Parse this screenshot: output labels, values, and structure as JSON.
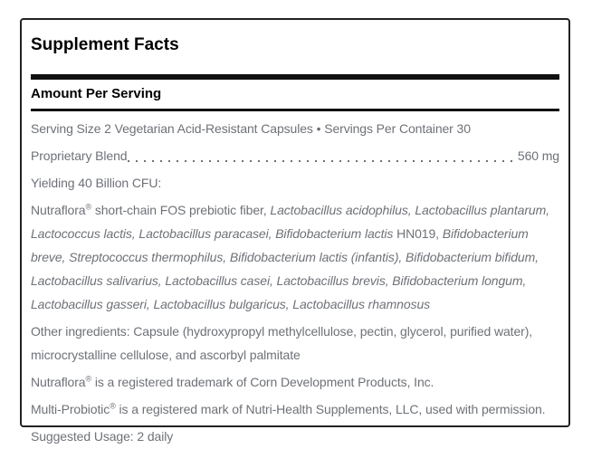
{
  "colors": {
    "text": "#6e7177",
    "heading": "#000000",
    "divider": "#111111",
    "panel_border": "#222222",
    "background": "#ffffff"
  },
  "panel": {
    "title": "Supplement Facts",
    "subheader": "Amount Per Serving",
    "serving_line": "Serving Size 2 Vegetarian Acid-Resistant Capsules • Servings Per Container 30",
    "proprietary": {
      "label": "Proprietary Blend",
      "value": "560 mg"
    },
    "yielding": "Yielding 40 Billion CFU:",
    "blend": {
      "brand": "Nutraflora",
      "trademark_symbol": "®",
      "regular_1": " short-chain FOS prebiotic fiber, ",
      "italic_1": "Lactobacillus acidophilus, Lactobacillus plantarum, Lactococcus lactis, Lactobacillus paracasei, Bifidobacterium lactis",
      "regular_2": " HN019, ",
      "italic_2": "Bifidobacterium breve, Streptococcus thermophilus, Bifidobacterium lactis (infantis), Bifidobacterium bifidum, Lactobacillus salivarius, Lactobacillus casei, Lactobacillus brevis, Bifidobacterium longum, Lactobacillus gasseri, Lactobacillus bulgaricus, Lactobacillus rhamnosus"
    },
    "other_ingredients": "Other ingredients: Capsule (hydroxypropyl methylcellulose, pectin, glycerol, purified water), microcrystalline cellulose, and ascorbyl palmitate",
    "nutraflora_trademark": {
      "brand": "Nutraflora",
      "symbol": "®",
      "text": " is a registered trademark of Corn Development Products, Inc."
    },
    "multiprobiotic_trademark": {
      "brand": "Multi-Probiotic",
      "symbol": "®",
      "text": " is a registered mark of Nutri-Health Supplements, LLC, used with permission."
    },
    "suggested_usage": "Suggested Usage: 2 daily"
  }
}
